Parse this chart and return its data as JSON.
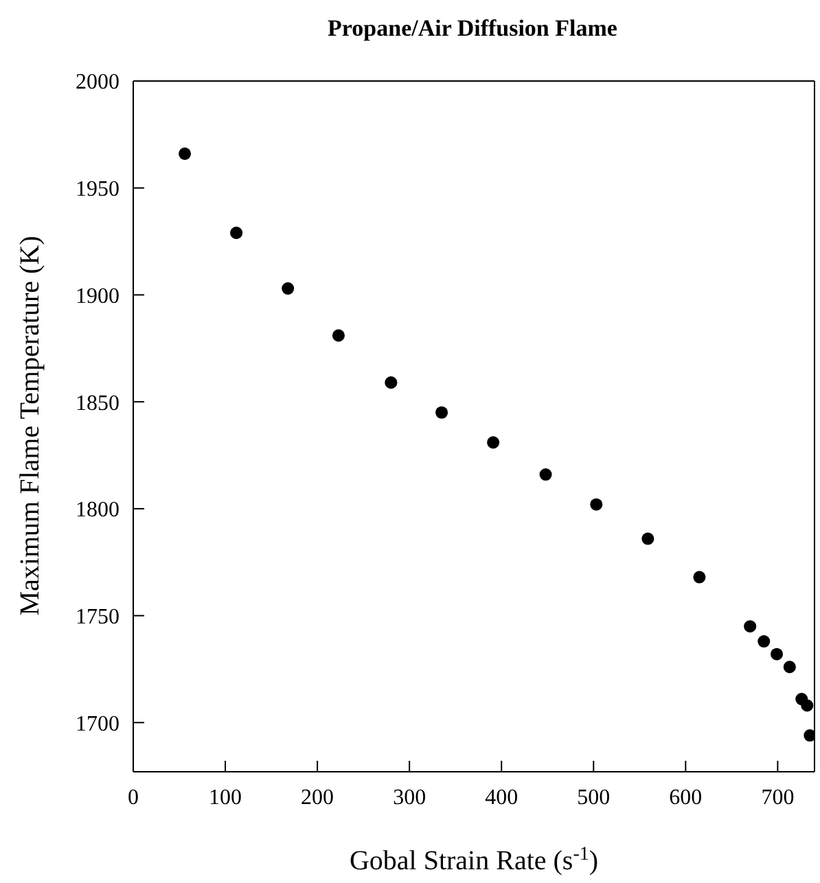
{
  "chart_data": {
    "type": "scatter",
    "title": "Propane/Air Diffusion Flame",
    "xlabel": "Gobal Strain Rate (s$^{-1}$)",
    "ylabel": "Maximum Flame Temperature (K)",
    "x": [
      56,
      112,
      168,
      223,
      280,
      335,
      391,
      448,
      503,
      559,
      615,
      670,
      685,
      699,
      713,
      726,
      732,
      735
    ],
    "series": [
      {
        "color": "#000000",
        "values": [
          1966,
          1929,
          1903,
          1881,
          1859,
          1845,
          1831,
          1816,
          1802,
          1786,
          1768,
          1745,
          1738,
          1732,
          1726,
          1711,
          1708,
          1694
        ]
      }
    ],
    "xlim": [
      0,
      740
    ],
    "xticks": [
      0,
      100,
      200,
      300,
      400,
      500,
      600,
      700
    ],
    "ylim": [
      1677,
      2000
    ],
    "yticks": [
      1700,
      1750,
      1800,
      1850,
      1900,
      1950,
      2000
    ],
    "marker": "circle",
    "grid": false,
    "legend": false
  }
}
